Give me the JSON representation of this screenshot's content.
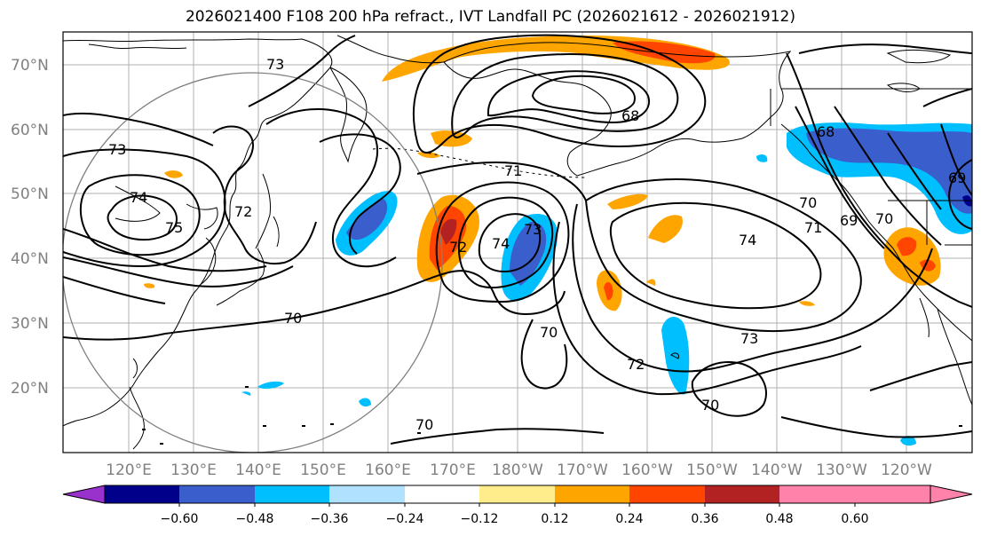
{
  "title": "2026021400 F108 200 hPa refract., IVT Landfall PC (2026021612 - 2026021912)",
  "map": {
    "lat_labels": [
      "70°N",
      "60°N",
      "50°N",
      "40°N",
      "30°N",
      "20°N"
    ],
    "lon_labels": [
      "120°E",
      "130°E",
      "140°E",
      "150°E",
      "160°E",
      "170°E",
      "180°W",
      "170°W",
      "160°W",
      "150°W",
      "140°W",
      "130°W",
      "120°W"
    ],
    "contour_labels": [
      "73",
      "73",
      "74",
      "75",
      "72",
      "68",
      "71",
      "72",
      "74",
      "73",
      "70",
      "70",
      "74",
      "71",
      "70",
      "69",
      "68",
      "69",
      "70",
      "73",
      "72",
      "70",
      "70"
    ],
    "gridlines": true,
    "reference_circle": true
  },
  "colorbar": {
    "ticks": [
      "−0.60",
      "−0.48",
      "−0.36",
      "−0.24",
      "−0.12",
      "0.12",
      "0.24",
      "0.36",
      "0.48",
      "0.60"
    ],
    "colors": [
      "#9932cc",
      "#00008b",
      "#3a5fcd",
      "#00bfff",
      "#b0e2ff",
      "#ffffff",
      "#ffec8b",
      "#ffa500",
      "#ff4500",
      "#b22222",
      "#ff82ab"
    ]
  }
}
